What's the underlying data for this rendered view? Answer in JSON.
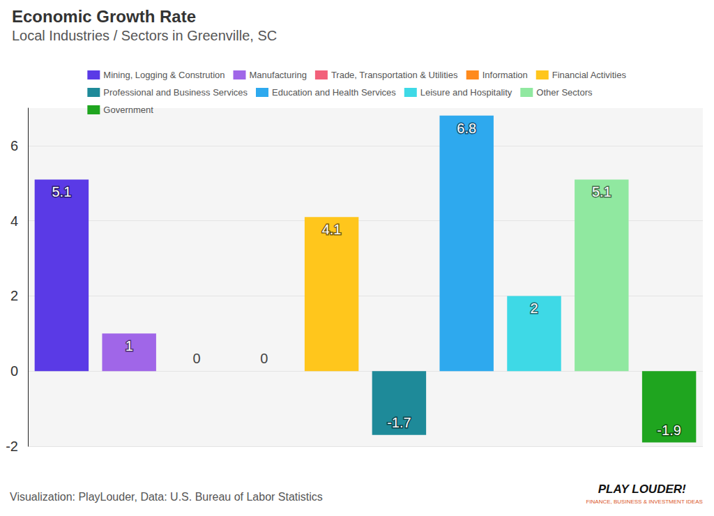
{
  "chart_data": {
    "type": "bar",
    "title": "Economic Growth Rate",
    "subtitle": "Local Industries / Sectors in Greenville, SC",
    "categories": [
      "Mining, Logging & Constrution",
      "Manufacturing",
      "Trade, Transportation & Utilities",
      "Information",
      "Financial Activities",
      "Professional and Business Services",
      "Education and Health Services",
      "Leisure and Hospitality",
      "Other Sectors",
      "Government"
    ],
    "values": [
      5.1,
      1,
      0,
      0,
      4.1,
      -1.7,
      6.8,
      2,
      5.1,
      -1.9
    ],
    "colors": [
      "#5a3ae6",
      "#a066e8",
      "#f2607a",
      "#ff8a1c",
      "#ffc61c",
      "#1e8a99",
      "#2ea9ee",
      "#3ed9e6",
      "#90e8a0",
      "#1fa51f"
    ],
    "ylim": [
      -2,
      7
    ],
    "yticks": [
      -2,
      0,
      2,
      4,
      6
    ],
    "grid": true,
    "legend": "top",
    "data_labels": true,
    "tick_labels": "y",
    "annotations": [
      "Visualization: PlayLouder, Data: U.S. Bureau of Labor Statistics",
      "PLAY LOUDER!",
      "FINANCE, BUSINESS & INVESTMENT IDEAS"
    ]
  }
}
